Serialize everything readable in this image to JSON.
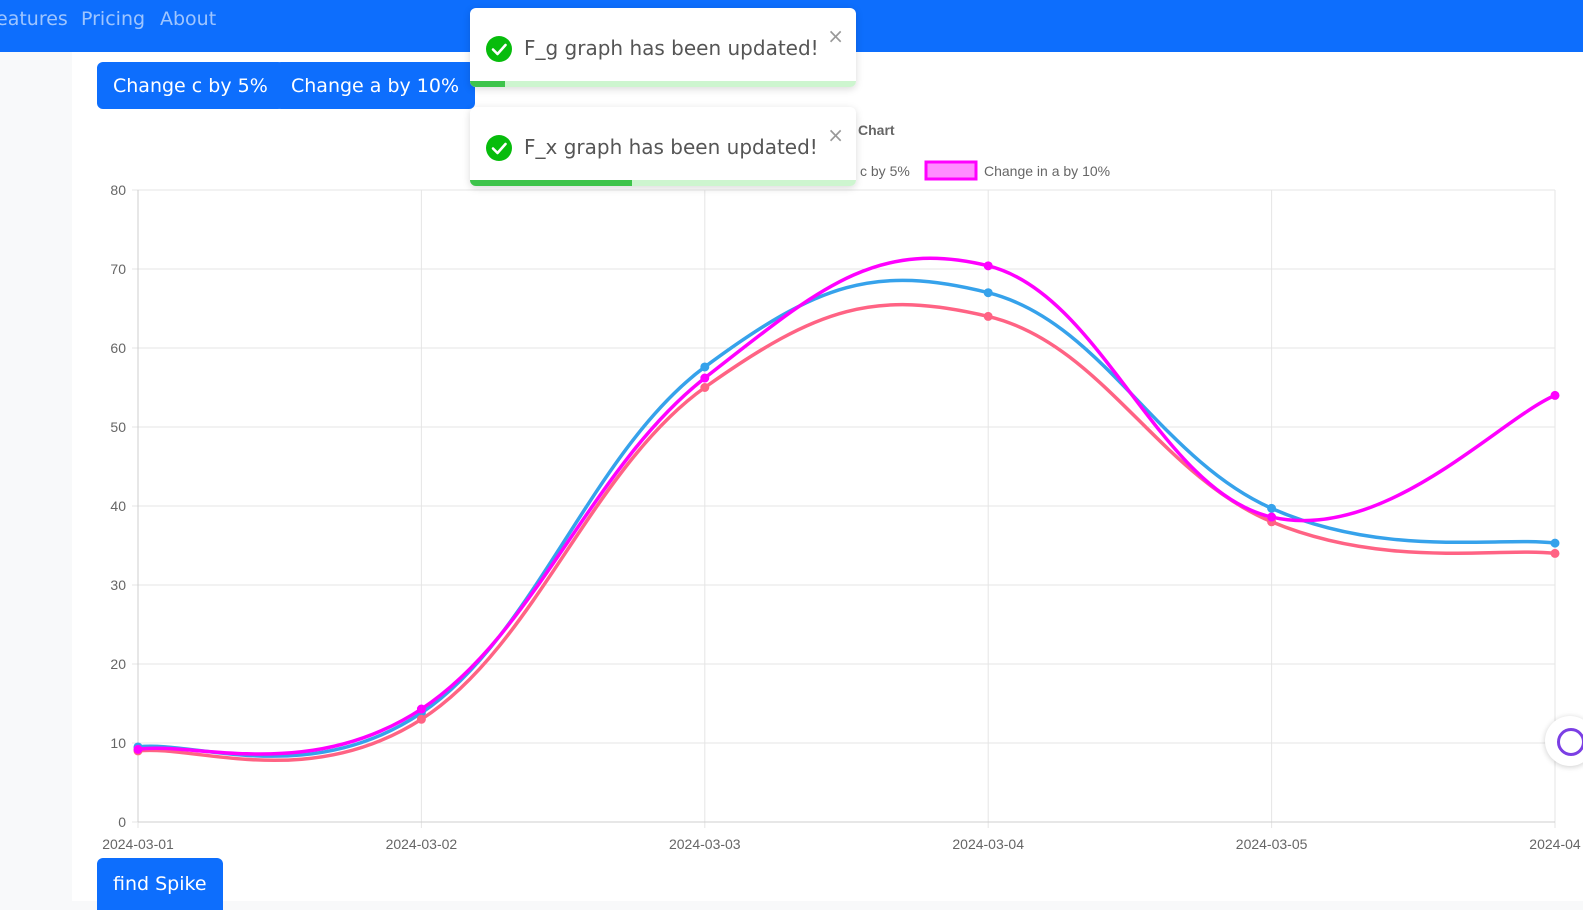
{
  "nav": {
    "items": [
      {
        "label": "eatures"
      },
      {
        "label": "Pricing"
      },
      {
        "label": "About"
      }
    ]
  },
  "buttons": {
    "change_c": "Change c by 5%",
    "change_a": "Change a by 10%",
    "find_spike": "find Spike"
  },
  "toasts": [
    {
      "message": "F_g graph has been updated!",
      "close": "×",
      "progress": 0.09
    },
    {
      "message": "F_x graph has been updated!",
      "close": "×",
      "progress": 0.42
    }
  ],
  "icons": {
    "check": "check-circle-icon",
    "close": "close-icon",
    "widget": "assistant-widget-icon"
  },
  "chart_data": {
    "type": "line",
    "title": "Chart",
    "x": [
      "2024-03-01",
      "2024-03-02",
      "2024-03-03",
      "2024-03-04",
      "2024-03-05",
      "2024-04"
    ],
    "ylim": [
      0,
      80
    ],
    "yticks": [
      0,
      10,
      20,
      30,
      40,
      50,
      60,
      70,
      80
    ],
    "grid": true,
    "legend_position": "top",
    "series": [
      {
        "name": "",
        "color": "#36a2eb",
        "values": [
          9.5,
          13.8,
          57.6,
          67,
          39.7,
          35.3
        ]
      },
      {
        "name": "c by 5%",
        "color": "#ff6384",
        "values": [
          9,
          13,
          55,
          64,
          38,
          34
        ]
      },
      {
        "name": "Change in a by 10%",
        "color": "#ff00ff",
        "values": [
          9.2,
          14.3,
          56.2,
          70.4,
          38.6,
          54
        ]
      }
    ]
  }
}
